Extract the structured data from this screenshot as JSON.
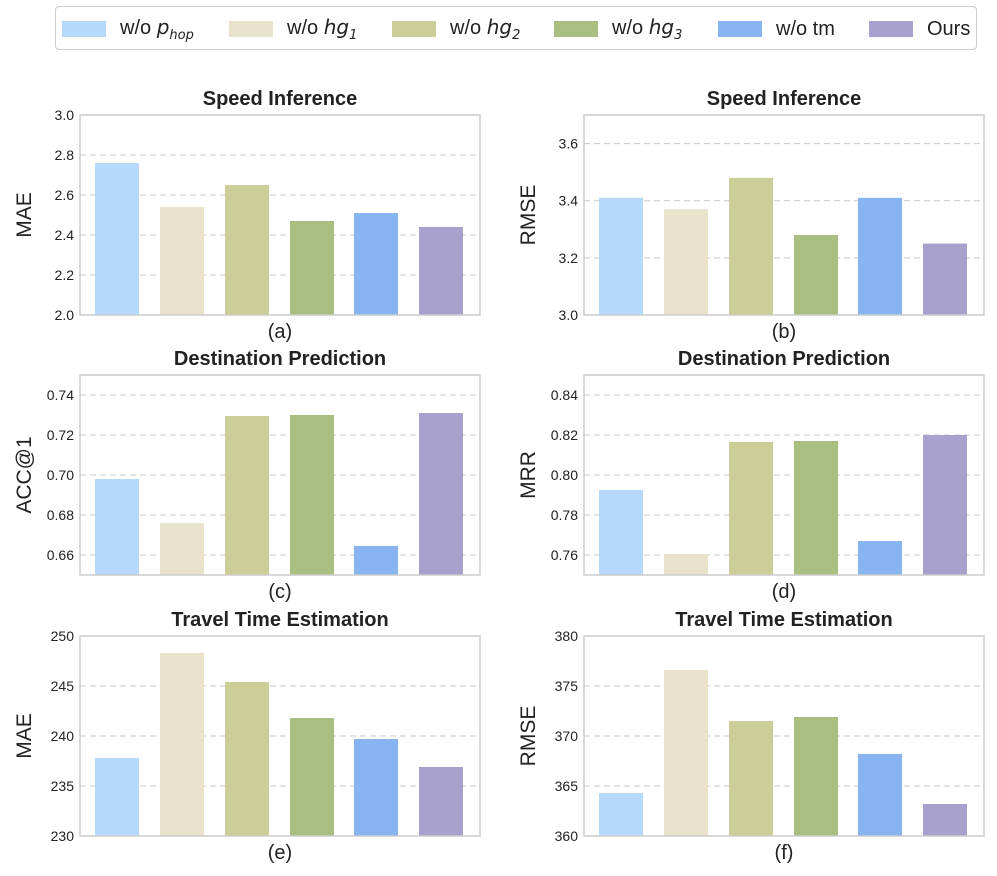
{
  "legend": {
    "items": [
      {
        "prefix": "w/o ",
        "math": "p",
        "sub": "hop",
        "color": "#b7d9fd"
      },
      {
        "prefix": "w/o ",
        "math": "hg",
        "sub": "1",
        "color": "#e9e3cb"
      },
      {
        "prefix": "w/o ",
        "math": "hg",
        "sub": "2",
        "color": "#ccce98"
      },
      {
        "prefix": "w/o ",
        "math": "hg",
        "sub": "3",
        "color": "#a9bf82"
      },
      {
        "prefix": "w/o tm",
        "math": "",
        "sub": "",
        "color": "#88b5f1"
      },
      {
        "prefix": "Ours",
        "math": "",
        "sub": "",
        "color": "#a8a1ce"
      }
    ]
  },
  "chart_data": [
    {
      "type": "bar",
      "panel": "(a)",
      "title": "Speed Inference",
      "ylabel": "MAE",
      "xlabel": "",
      "ylim": [
        2.0,
        3.0
      ],
      "yticks": [
        "2.0",
        "2.2",
        "2.4",
        "2.6",
        "2.8",
        "3.0"
      ],
      "values": [
        2.76,
        2.54,
        2.65,
        2.47,
        2.51,
        2.44
      ]
    },
    {
      "type": "bar",
      "panel": "(b)",
      "title": "Speed Inference",
      "ylabel": "RMSE",
      "xlabel": "",
      "ylim": [
        3.0,
        3.7
      ],
      "yticks": [
        "3.0",
        "3.2",
        "3.4",
        "3.6"
      ],
      "values": [
        3.41,
        3.37,
        3.48,
        3.28,
        3.41,
        3.25
      ]
    },
    {
      "type": "bar",
      "panel": "(c)",
      "title": "Destination Prediction",
      "ylabel": "ACC@1",
      "xlabel": "",
      "ylim": [
        0.65,
        0.75
      ],
      "yticks": [
        "0.66",
        "0.68",
        "0.70",
        "0.72",
        "0.74"
      ],
      "values": [
        0.698,
        0.676,
        0.7295,
        0.73,
        0.6645,
        0.731
      ]
    },
    {
      "type": "bar",
      "panel": "(d)",
      "title": "Destination Prediction",
      "ylabel": "MRR",
      "xlabel": "",
      "ylim": [
        0.75,
        0.85
      ],
      "yticks": [
        "0.76",
        "0.78",
        "0.80",
        "0.82",
        "0.84"
      ],
      "values": [
        0.7925,
        0.7605,
        0.8165,
        0.817,
        0.767,
        0.82
      ]
    },
    {
      "type": "bar",
      "panel": "(e)",
      "title": "Travel Time Estimation",
      "ylabel": "MAE",
      "xlabel": "",
      "ylim": [
        230,
        250
      ],
      "yticks": [
        "230",
        "235",
        "240",
        "245",
        "250"
      ],
      "values": [
        237.8,
        248.3,
        245.4,
        241.8,
        239.7,
        236.9
      ]
    },
    {
      "type": "bar",
      "panel": "(f)",
      "title": "Travel Time Estimation",
      "ylabel": "RMSE",
      "xlabel": "",
      "ylim": [
        360,
        380
      ],
      "yticks": [
        "360",
        "365",
        "370",
        "375",
        "380"
      ],
      "values": [
        364.3,
        376.6,
        371.5,
        371.9,
        368.2,
        363.2
      ]
    }
  ]
}
